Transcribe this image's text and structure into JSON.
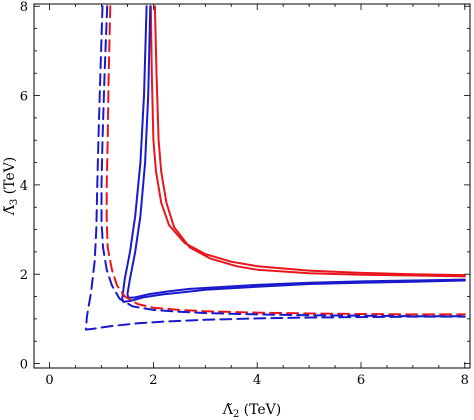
{
  "chart_data": {
    "type": "line",
    "xlabel": {
      "main": "Λ̃",
      "sub": "2",
      "unit": " (TeV)"
    },
    "ylabel": {
      "main": "Λ̃",
      "sub": "3",
      "unit": " (TeV)"
    },
    "xlim": [
      -0.3,
      8.1
    ],
    "ylim": [
      -0.1,
      8.05
    ],
    "xticks": [
      0,
      2,
      4,
      6,
      8
    ],
    "yticks": [
      0,
      2,
      4,
      6,
      8
    ],
    "grid": false,
    "series": [
      {
        "color": "#e8161c",
        "style": "solid",
        "points": [
          [
            1.95,
            8.0
          ],
          [
            1.97,
            6.5
          ],
          [
            2.0,
            5.0
          ],
          [
            2.05,
            4.3
          ],
          [
            2.15,
            3.6
          ],
          [
            2.3,
            3.1
          ],
          [
            2.6,
            2.7
          ],
          [
            3.0,
            2.45
          ],
          [
            3.5,
            2.28
          ],
          [
            4.0,
            2.18
          ],
          [
            5.0,
            2.08
          ],
          [
            6.0,
            2.03
          ],
          [
            7.0,
            2.0
          ],
          [
            8.0,
            1.98
          ]
        ]
      },
      {
        "color": "#e8161c",
        "style": "solid",
        "points": [
          [
            2.03,
            8.0
          ],
          [
            2.06,
            6.5
          ],
          [
            2.1,
            5.0
          ],
          [
            2.15,
            4.3
          ],
          [
            2.25,
            3.6
          ],
          [
            2.4,
            3.05
          ],
          [
            2.7,
            2.6
          ],
          [
            3.1,
            2.35
          ],
          [
            3.6,
            2.18
          ],
          [
            4.0,
            2.1
          ],
          [
            5.0,
            2.02
          ],
          [
            6.0,
            1.99
          ],
          [
            7.0,
            1.97
          ],
          [
            8.0,
            1.95
          ]
        ]
      },
      {
        "color": "#1a1acc",
        "style": "solid",
        "points": [
          [
            1.87,
            8.0
          ],
          [
            1.82,
            6.0
          ],
          [
            1.75,
            4.5
          ],
          [
            1.65,
            3.3
          ],
          [
            1.55,
            2.5
          ],
          [
            1.45,
            1.9
          ],
          [
            1.4,
            1.45
          ],
          [
            1.42,
            1.38
          ],
          [
            1.55,
            1.4
          ],
          [
            1.8,
            1.48
          ],
          [
            2.2,
            1.55
          ],
          [
            2.6,
            1.6
          ],
          [
            3.0,
            1.65
          ],
          [
            4.0,
            1.72
          ],
          [
            5.0,
            1.78
          ],
          [
            6.0,
            1.81
          ],
          [
            7.0,
            1.83
          ],
          [
            8.0,
            1.86
          ]
        ]
      },
      {
        "color": "#1a1acc",
        "style": "solid",
        "points": [
          [
            1.94,
            8.0
          ],
          [
            1.9,
            6.0
          ],
          [
            1.84,
            4.5
          ],
          [
            1.75,
            3.3
          ],
          [
            1.65,
            2.5
          ],
          [
            1.55,
            1.9
          ],
          [
            1.5,
            1.55
          ],
          [
            1.52,
            1.47
          ],
          [
            1.65,
            1.48
          ],
          [
            1.9,
            1.55
          ],
          [
            2.3,
            1.62
          ],
          [
            2.7,
            1.67
          ],
          [
            3.1,
            1.7
          ],
          [
            4.0,
            1.76
          ],
          [
            5.0,
            1.81
          ],
          [
            6.0,
            1.84
          ],
          [
            7.0,
            1.86
          ],
          [
            8.0,
            1.88
          ]
        ]
      },
      {
        "color": "#e8161c",
        "style": "dashed",
        "points": [
          [
            1.17,
            8.0
          ],
          [
            1.14,
            6.5
          ],
          [
            1.12,
            5.0
          ],
          [
            1.1,
            4.0
          ],
          [
            1.1,
            3.2
          ],
          [
            1.12,
            2.6
          ],
          [
            1.2,
            2.1
          ],
          [
            1.3,
            1.75
          ],
          [
            1.45,
            1.5
          ],
          [
            1.7,
            1.33
          ],
          [
            2.0,
            1.25
          ],
          [
            2.5,
            1.2
          ],
          [
            3.0,
            1.17
          ],
          [
            4.0,
            1.14
          ],
          [
            5.0,
            1.12
          ],
          [
            6.0,
            1.11
          ],
          [
            7.0,
            1.1
          ],
          [
            8.0,
            1.1
          ]
        ]
      },
      {
        "color": "#1a1acc",
        "style": "dashed",
        "points": [
          [
            1.11,
            8.0
          ],
          [
            1.06,
            6.5
          ],
          [
            1.02,
            5.0
          ],
          [
            1.0,
            4.0
          ],
          [
            1.0,
            3.2
          ],
          [
            1.03,
            2.6
          ],
          [
            1.1,
            2.1
          ],
          [
            1.2,
            1.75
          ],
          [
            1.35,
            1.45
          ],
          [
            1.6,
            1.28
          ],
          [
            2.0,
            1.2
          ],
          [
            2.5,
            1.16
          ],
          [
            3.0,
            1.13
          ],
          [
            4.0,
            1.1
          ],
          [
            5.0,
            1.08
          ],
          [
            6.0,
            1.07
          ],
          [
            7.0,
            1.06
          ],
          [
            8.0,
            1.06
          ]
        ]
      },
      {
        "color": "#1a1acc",
        "style": "dashed",
        "points": [
          [
            1.02,
            8.0
          ],
          [
            0.98,
            6.5
          ],
          [
            0.94,
            5.0
          ],
          [
            0.92,
            4.0
          ],
          [
            0.9,
            3.0
          ],
          [
            0.87,
            2.3
          ],
          [
            0.8,
            1.6
          ],
          [
            0.72,
            1.05
          ],
          [
            0.7,
            0.76
          ],
          [
            0.85,
            0.78
          ],
          [
            1.2,
            0.84
          ],
          [
            1.7,
            0.9
          ],
          [
            2.2,
            0.94
          ],
          [
            3.0,
            0.98
          ],
          [
            4.0,
            1.01
          ],
          [
            5.0,
            1.03
          ],
          [
            6.0,
            1.04
          ],
          [
            7.0,
            1.05
          ],
          [
            8.0,
            1.05
          ]
        ]
      }
    ]
  }
}
